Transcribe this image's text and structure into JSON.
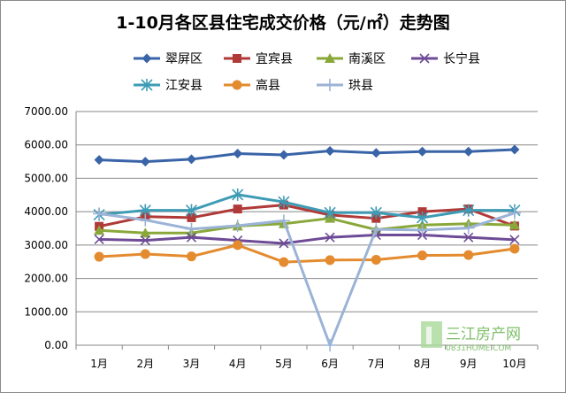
{
  "chart_data": {
    "type": "line",
    "title": "1-10月各区县住宅成交价格（元/㎡）走势图",
    "xlabel": "",
    "ylabel": "",
    "categories": [
      "1月",
      "2月",
      "3月",
      "4月",
      "5月",
      "6月",
      "7月",
      "8月",
      "9月",
      "10月"
    ],
    "y_ticks": [
      "0.00",
      "1000.00",
      "2000.00",
      "3000.00",
      "4000.00",
      "5000.00",
      "6000.00",
      "7000.00"
    ],
    "ylim": [
      0,
      7000
    ],
    "grid": true,
    "legend_position": "top",
    "series": [
      {
        "name": "翠屏区",
        "color": "#3a64a8",
        "marker": "diamond",
        "values": [
          5550,
          5500,
          5570,
          5740,
          5700,
          5820,
          5760,
          5800,
          5800,
          5860
        ]
      },
      {
        "name": "宜宾县",
        "color": "#b03a38",
        "marker": "square",
        "values": [
          3560,
          3850,
          3820,
          4080,
          4200,
          3900,
          3800,
          4000,
          4080,
          3570
        ]
      },
      {
        "name": "南溪区",
        "color": "#8aa83a",
        "marker": "triangle",
        "values": [
          3440,
          3360,
          3360,
          3570,
          3640,
          3800,
          3460,
          3600,
          3640,
          3600
        ]
      },
      {
        "name": "长宁县",
        "color": "#6e4b96",
        "marker": "x",
        "values": [
          3170,
          3140,
          3230,
          3140,
          3050,
          3230,
          3300,
          3300,
          3230,
          3160
        ]
      },
      {
        "name": "江安县",
        "color": "#3d9bb5",
        "marker": "asterisk",
        "values": [
          3910,
          4040,
          4040,
          4510,
          4290,
          3970,
          3970,
          3820,
          4040,
          4040
        ]
      },
      {
        "name": "高县",
        "color": "#e38b2e",
        "marker": "circle",
        "values": [
          2650,
          2730,
          2660,
          3000,
          2490,
          2550,
          2560,
          2690,
          2700,
          2890
        ]
      },
      {
        "name": "珙县",
        "color": "#9bb3d6",
        "marker": "plus",
        "values": [
          3940,
          3750,
          3480,
          3580,
          3730,
          0,
          3470,
          3450,
          3510,
          3960
        ]
      }
    ]
  },
  "watermark": {
    "brand": "三江房产网",
    "url": "0831HOME.COM"
  }
}
